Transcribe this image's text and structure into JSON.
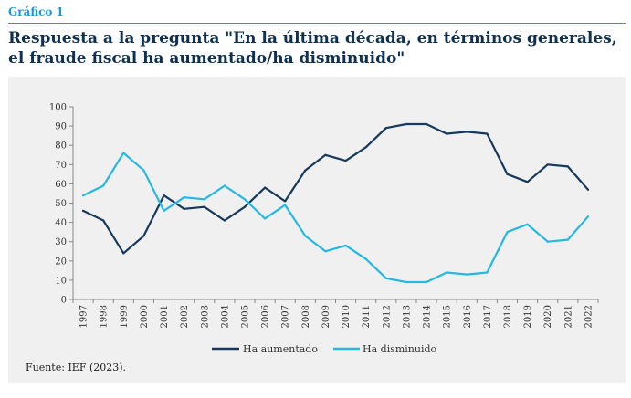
{
  "header": {
    "label": "Gráfico 1",
    "title": "Respuesta a la pregunta \"En la última década, en términos generales, el fraude fiscal ha aumentado/ha disminuido\""
  },
  "source": "Fuente: IEF (2023).",
  "colors": {
    "accent": "#1a9ad6",
    "panel": "#f0f0f0"
  },
  "chart_data": {
    "type": "line",
    "x": [
      "1997",
      "1998",
      "1999",
      "2000",
      "2001",
      "2002",
      "2003",
      "2004",
      "2005",
      "2006",
      "2007",
      "2008",
      "2009",
      "2010",
      "2011",
      "2012",
      "2013",
      "2014",
      "2015",
      "2016",
      "2017",
      "2018",
      "2019",
      "2020",
      "2021",
      "2022"
    ],
    "ylim": [
      0,
      100
    ],
    "yticks": [
      0,
      10,
      20,
      30,
      40,
      50,
      60,
      70,
      80,
      90,
      100
    ],
    "grid": false,
    "legend": "bottom-center",
    "series": [
      {
        "name": "Ha aumentado",
        "color": "#16395c",
        "values": [
          46,
          41,
          24,
          33,
          54,
          47,
          48,
          41,
          48,
          58,
          51,
          67,
          75,
          72,
          79,
          89,
          91,
          91,
          86,
          87,
          86,
          65,
          61,
          70,
          69,
          57
        ]
      },
      {
        "name": "Ha disminuido",
        "color": "#25b8e3",
        "values": [
          54,
          59,
          76,
          67,
          46,
          53,
          52,
          59,
          52,
          42,
          49,
          33,
          25,
          28,
          21,
          11,
          9,
          9,
          14,
          13,
          14,
          35,
          39,
          30,
          31,
          43
        ]
      }
    ]
  }
}
